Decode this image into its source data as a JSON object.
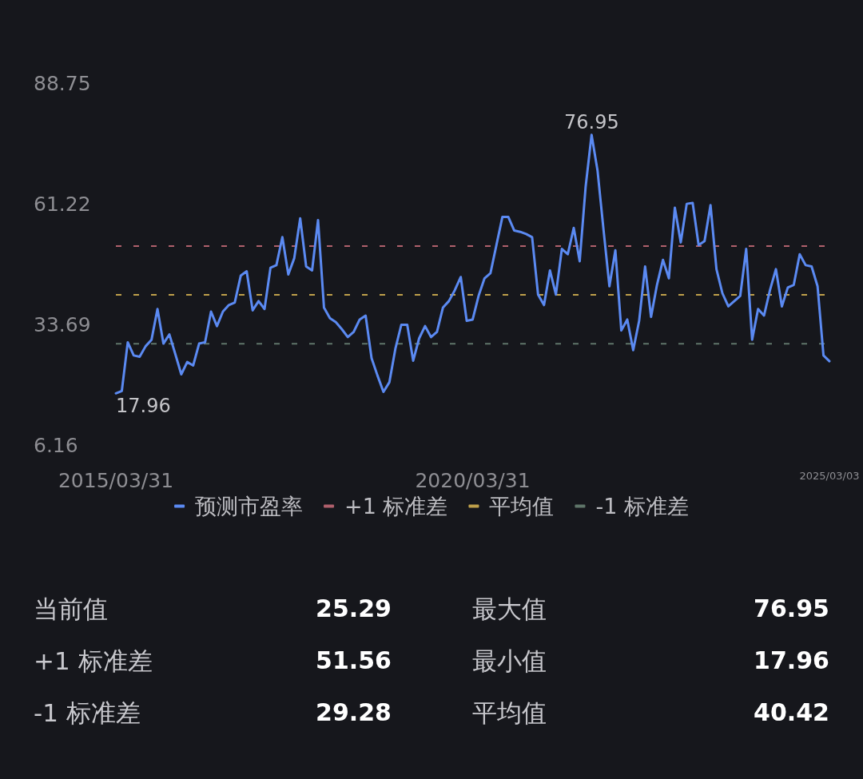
{
  "chart_data": {
    "type": "line",
    "categories": [
      "2015/03/31",
      null,
      null,
      null,
      null,
      null,
      null,
      null,
      null,
      null,
      null,
      null,
      null,
      null,
      null,
      null,
      null,
      null,
      null,
      null,
      null,
      null,
      null,
      null,
      null,
      null,
      null,
      null,
      null,
      null,
      null,
      null,
      null,
      null,
      null,
      null,
      null,
      null,
      null,
      null,
      null,
      null,
      null,
      null,
      null,
      null,
      null,
      null,
      null,
      null,
      null,
      null,
      null,
      null,
      null,
      null,
      null,
      null,
      null,
      null,
      "2020/03/31",
      null,
      null,
      null,
      null,
      null,
      null,
      null,
      null,
      null,
      null,
      null,
      null,
      null,
      null,
      null,
      null,
      null,
      null,
      null,
      null,
      null,
      null,
      null,
      null,
      null,
      null,
      null,
      null,
      null,
      null,
      null,
      null,
      null,
      null,
      null,
      null,
      null,
      null,
      null,
      null,
      null,
      null,
      null,
      null,
      null,
      null,
      null,
      null,
      null,
      null,
      null,
      null,
      null,
      null,
      null,
      null,
      null,
      null,
      null,
      "2025/03/03"
    ],
    "series": [
      {
        "name": "预测市盈率",
        "color": "#5b8af2",
        "values": [
          17.96,
          18.5,
          29.6,
          26.6,
          26.3,
          28.7,
          30.2,
          37.2,
          29.3,
          31.4,
          26.9,
          22.3,
          25.1,
          24.3,
          29.3,
          29.6,
          36.6,
          33.3,
          36.6,
          38.1,
          38.7,
          44.8,
          45.8,
          36.9,
          39.0,
          37.2,
          46.6,
          47.2,
          53.6,
          45.1,
          48.8,
          57.9,
          46.9,
          46.0,
          57.5,
          37.5,
          35.1,
          34.2,
          32.6,
          30.8,
          32.0,
          34.8,
          35.7,
          26.0,
          22.0,
          18.3,
          20.5,
          28.1,
          33.6,
          33.6,
          25.4,
          30.5,
          33.3,
          30.8,
          32.0,
          37.5,
          39.0,
          41.5,
          44.5,
          34.5,
          34.8,
          40.2,
          44.2,
          45.4,
          51.8,
          58.2,
          58.2,
          55.1,
          54.8,
          54.3,
          53.6,
          40.5,
          38.1,
          46.0,
          40.5,
          50.9,
          49.7,
          55.7,
          48.1,
          65.1,
          76.95,
          68.8,
          55.4,
          42.4,
          50.6,
          32.3,
          34.8,
          27.8,
          34.5,
          46.9,
          35.4,
          42.7,
          48.4,
          44.2,
          60.3,
          52.4,
          61.2,
          61.4,
          51.8,
          52.7,
          60.9,
          46.3,
          40.8,
          37.8,
          39.0,
          40.2,
          50.9,
          30.2,
          37.2,
          35.7,
          41.5,
          46.3,
          37.8,
          42.1,
          42.7,
          49.7,
          47.2,
          46.9,
          42.4,
          26.6,
          25.29
        ],
        "value_labels": [
          "17.96",
          null,
          null,
          null,
          null,
          null,
          null,
          null,
          null,
          null,
          null,
          null,
          null,
          null,
          null,
          null,
          null,
          null,
          null,
          null,
          null,
          null,
          null,
          null,
          null,
          null,
          null,
          null,
          null,
          null,
          null,
          null,
          null,
          null,
          null,
          null,
          null,
          null,
          null,
          null,
          null,
          null,
          null,
          null,
          null,
          null,
          null,
          null,
          null,
          null,
          null,
          null,
          null,
          null,
          null,
          null,
          null,
          null,
          null,
          null,
          null,
          null,
          null,
          null,
          null,
          null,
          null,
          null,
          null,
          null,
          null,
          null,
          null,
          null,
          null,
          null,
          null,
          null,
          null,
          null,
          "76.95",
          null,
          null,
          null,
          null,
          null,
          null,
          null,
          null,
          null,
          null,
          null,
          null,
          null,
          null,
          null,
          null,
          null,
          null,
          null,
          null,
          null,
          null,
          null,
          null,
          null,
          null,
          null,
          null,
          null,
          null,
          null,
          null,
          null,
          null,
          null,
          null,
          null,
          null,
          null,
          null
        ]
      }
    ],
    "ylim": [
      6.16,
      88.75
    ],
    "yticks": [
      6.16,
      33.69,
      61.22,
      88.75
    ],
    "ref_lines": [
      {
        "axis": "y",
        "value": 51.56,
        "label": "+1 标准差",
        "color": "#b0606c",
        "line_style": "dashed"
      },
      {
        "axis": "y",
        "value": 40.42,
        "label": "平均值",
        "color": "#bfa04a",
        "line_style": "dashed"
      },
      {
        "axis": "y",
        "value": 29.28,
        "label": "-1 标准差",
        "color": "#5f7569",
        "line_style": "dashed"
      }
    ],
    "annotations": [
      "当前值",
      "25.29",
      "最大值",
      "76.95",
      "+1 标准差",
      "51.56",
      "最小值",
      "17.96",
      "-1 标准差",
      "29.28",
      "平均值",
      "40.42"
    ],
    "grid": false,
    "legend": "bottom",
    "marker": "none",
    "line_style": "solid"
  }
}
